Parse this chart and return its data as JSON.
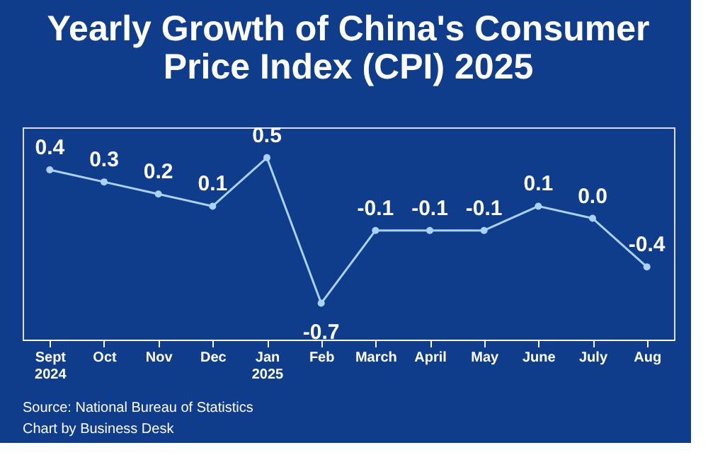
{
  "chart_data": {
    "type": "line",
    "title": "Yearly Growth of China's Consumer Price Index (CPI) 2025",
    "categories": [
      "Sept 2024",
      "Oct",
      "Nov",
      "Dec",
      "Jan 2025",
      "Feb",
      "March",
      "April",
      "May",
      "June",
      "July",
      "Aug"
    ],
    "series": [
      {
        "color": "#a9d2ff",
        "values": [
          0.4,
          0.3,
          0.2,
          0.1,
          0.5,
          -0.7,
          -0.1,
          -0.1,
          -0.1,
          0.1,
          0.0,
          -0.4
        ],
        "value_labels": [
          "0.4",
          "0.3",
          "0.2",
          "0.1",
          "0.5",
          "-0.7",
          "-0.1",
          "-0.1",
          "-0.1",
          "0.1",
          "0.0",
          "-0.4"
        ]
      }
    ],
    "ylim": [
      -1.0,
      0.75
    ],
    "tick_labels": "x",
    "grid": false,
    "marker": "circle",
    "line_style": "solid",
    "annotations": [
      "Source: National Bureau of Statistics",
      "Chart by Business Desk"
    ]
  }
}
